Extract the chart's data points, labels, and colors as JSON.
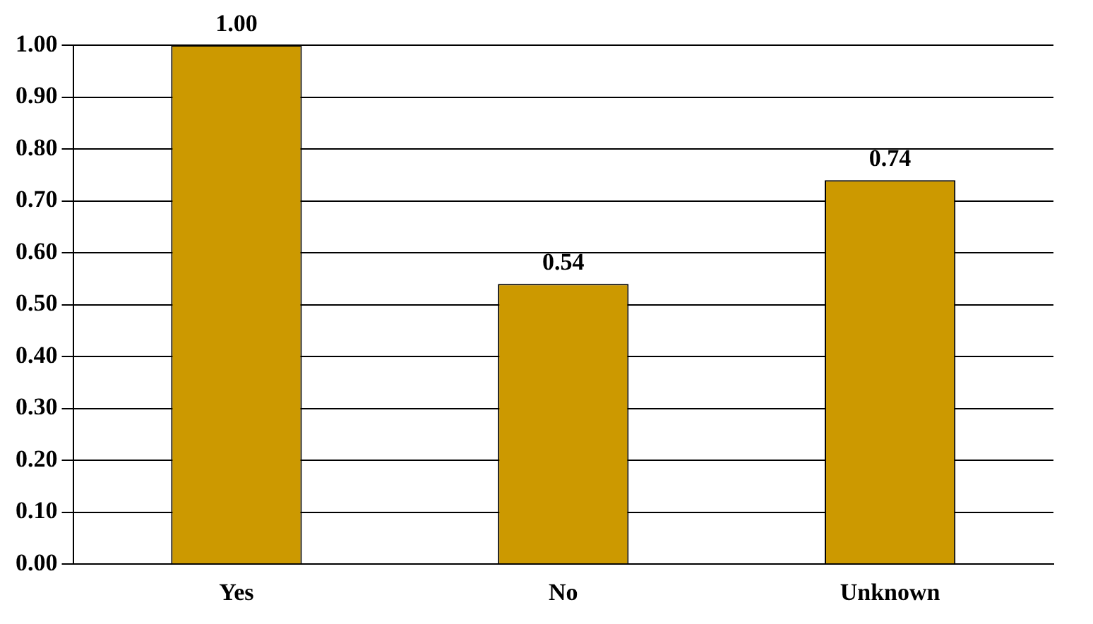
{
  "chart_data": {
    "type": "bar",
    "categories": [
      "Yes",
      "No",
      "Unknown"
    ],
    "values": [
      1.0,
      0.54,
      0.74
    ],
    "color": "#cc9900",
    "value_labels": [
      "1.00",
      "0.54",
      "0.74"
    ],
    "ylim": [
      0,
      1
    ],
    "yticks": [
      {
        "value": 0,
        "label": "0.00"
      },
      {
        "value": 0.1,
        "label": "0.10"
      },
      {
        "value": 0.2,
        "label": "0.20"
      },
      {
        "value": 0.3,
        "label": "0.30"
      },
      {
        "value": 0.4,
        "label": "0.40"
      },
      {
        "value": 0.5,
        "label": "0.50"
      },
      {
        "value": 0.6,
        "label": "0.60"
      },
      {
        "value": 0.7,
        "label": "0.70"
      },
      {
        "value": 0.8,
        "label": "0.80"
      },
      {
        "value": 0.9,
        "label": "0.90"
      },
      {
        "value": 1,
        "label": "1.00"
      }
    ],
    "grid": "y"
  }
}
